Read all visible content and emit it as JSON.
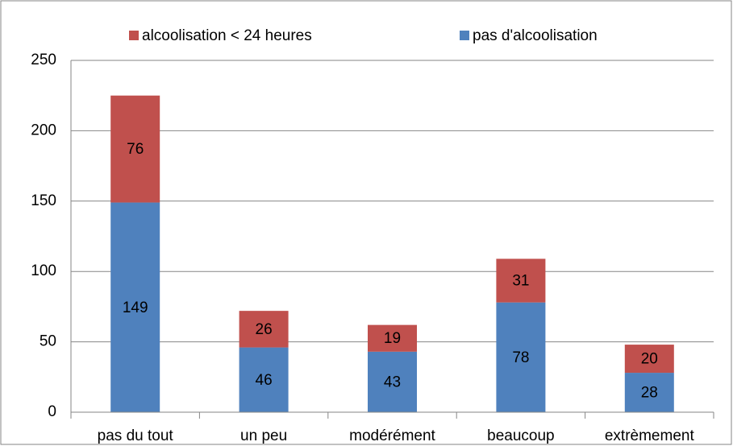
{
  "chart_data": {
    "type": "stacked-bar",
    "categories": [
      "pas du tout",
      "un peu",
      "modérément",
      "beaucoup",
      "extrèmement"
    ],
    "series": [
      {
        "name": "pas d'alcoolisation",
        "color": "#4f81bd",
        "values": [
          149,
          46,
          43,
          78,
          28
        ]
      },
      {
        "name": "alcoolisation < 24 heures",
        "color": "#c0504d",
        "values": [
          76,
          26,
          19,
          31,
          20
        ]
      }
    ],
    "ylim": [
      0,
      250
    ],
    "yticks": [
      0,
      50,
      100,
      150,
      200,
      250
    ],
    "grid": true,
    "legend": "top",
    "data_labels": true
  }
}
